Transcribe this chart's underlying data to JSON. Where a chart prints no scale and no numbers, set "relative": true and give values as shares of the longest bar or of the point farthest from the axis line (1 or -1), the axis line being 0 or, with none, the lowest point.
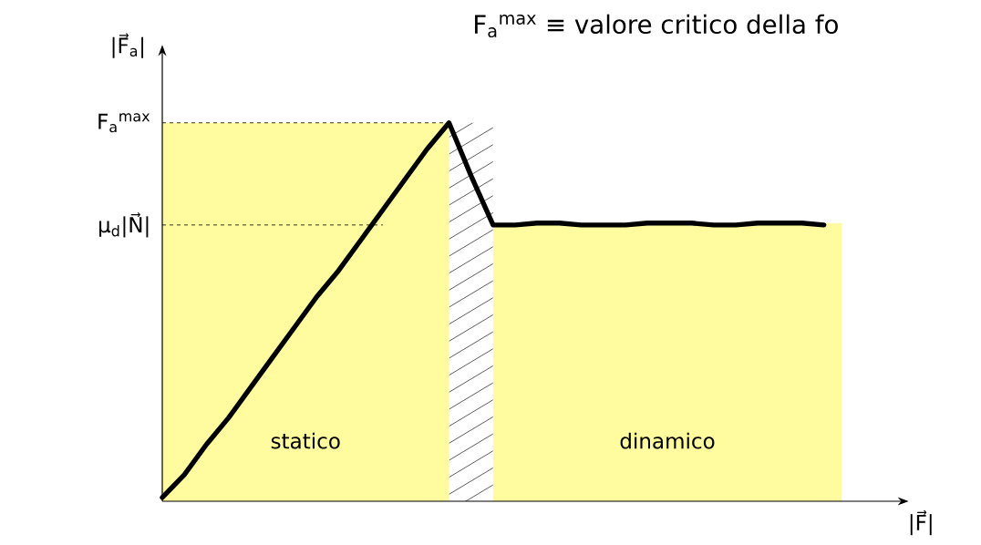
{
  "chart_data": {
    "type": "line",
    "relative": true,
    "title": "F$_{a}$$^{max}$ ≡ valore critico della fo",
    "xlabel": "|F⃗|",
    "ylabel": "|F⃗$_{a}$|",
    "categories": [
      null,
      null,
      null,
      null,
      null,
      null,
      null,
      null,
      null,
      null,
      null,
      null,
      null,
      null,
      null,
      null,
      null,
      null,
      null,
      null,
      null,
      null,
      null,
      null,
      null,
      null,
      null,
      null,
      null,
      null,
      null
    ],
    "series": [
      {
        "color": "#000000",
        "values": [
          0.01,
          0.07,
          0.15,
          0.22,
          0.3,
          0.38,
          0.46,
          0.54,
          0.61,
          0.69,
          0.77,
          0.85,
          0.93,
          1,
          0.86,
          0.73,
          0.73,
          0.735,
          0.735,
          0.73,
          0.73,
          0.73,
          0.735,
          0.735,
          0.735,
          0.73,
          0.73,
          0.735,
          0.735,
          0.735,
          0.73
        ]
      }
    ],
    "ref_lines": [
      {
        "axis": "y",
        "value": 1,
        "label": "F$_{a}$$^{max}$",
        "line_style": "dashed"
      },
      {
        "axis": "y",
        "value": 0.73,
        "label": "μ$_{d}$|N⃗|",
        "line_style": "dashed"
      }
    ],
    "annotations": [
      "statico",
      "dinamico"
    ],
    "marker": "none",
    "line_style": "solid"
  }
}
